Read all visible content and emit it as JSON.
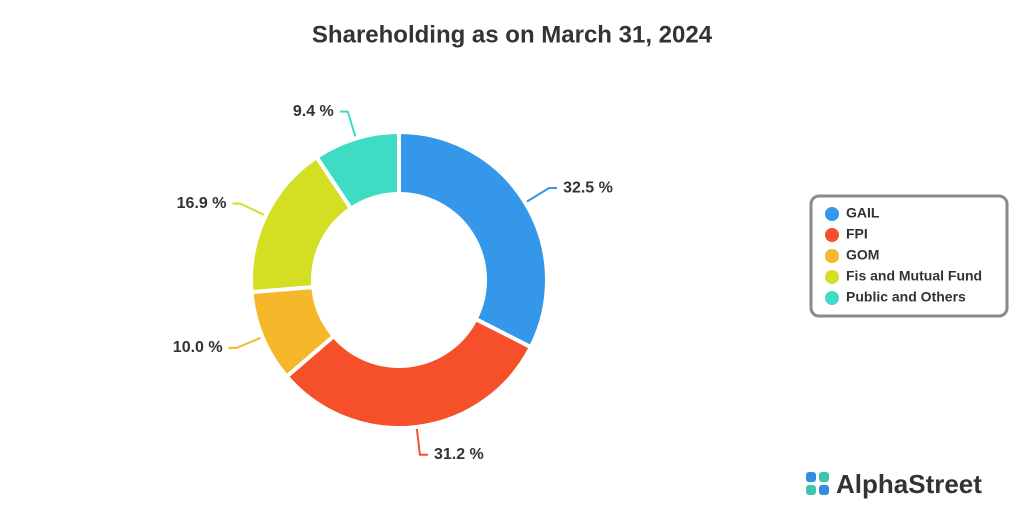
{
  "chart_data": {
    "type": "pie",
    "title": "Shareholding as on March 31, 2024",
    "categories": [
      "GAIL",
      "FPI",
      "GOM",
      "Fis and Mutual Fund",
      "Public and Others"
    ],
    "values": [
      32.5,
      31.2,
      10.0,
      16.9,
      9.4
    ],
    "value_labels": [
      "32.5 %",
      "31.2 %",
      "10.0 %",
      "16.9 %",
      "9.4 %"
    ],
    "colors": [
      "#3597ea",
      "#f5502a",
      "#f5b82a",
      "#d4de23",
      "#3fdcc4"
    ],
    "legend": "right"
  },
  "brand": "AlphaStreet"
}
